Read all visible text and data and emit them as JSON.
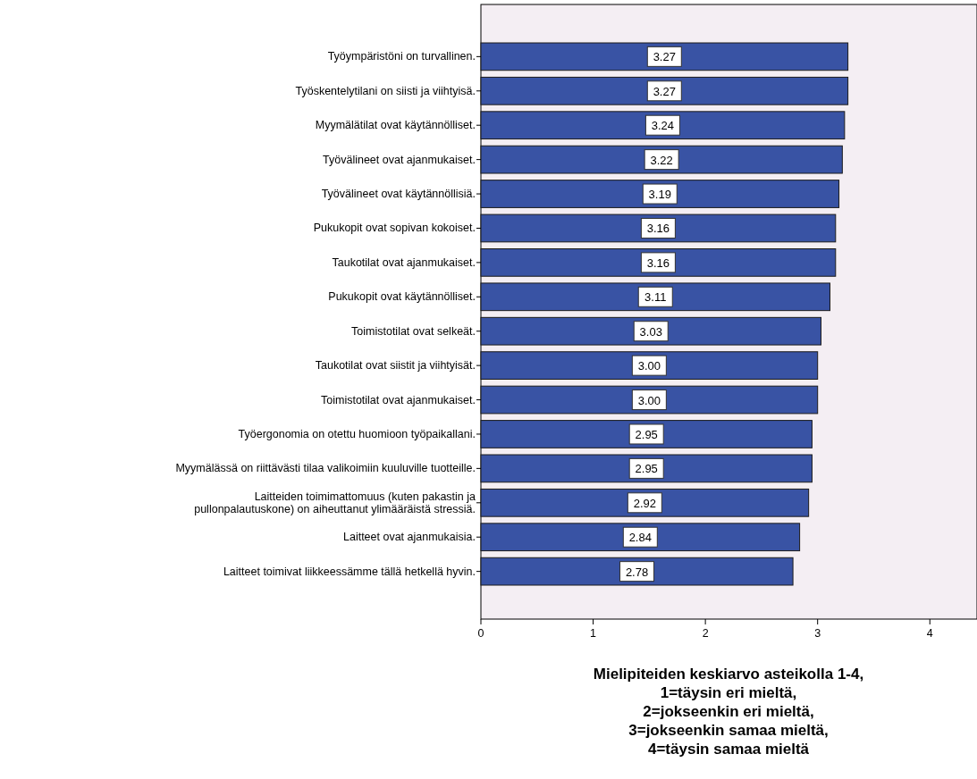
{
  "chart_data": {
    "type": "bar",
    "orientation": "horizontal",
    "categories": [
      "Työympäristöni on turvallinen.",
      "Työskentelytilani on siisti ja viihtyisä.",
      "Myymälätilat ovat käytännölliset.",
      "Työvälineet ovat ajanmukaiset.",
      "Työvälineet ovat käytännöllisiä.",
      "Pukukopit ovat sopivan kokoiset.",
      "Taukotilat ovat ajanmukaiset.",
      "Pukukopit ovat käytännölliset.",
      "Toimistotilat ovat selkeät.",
      "Taukotilat ovat siistit ja viihtyisät.",
      "Toimistotilat ovat ajanmukaiset.",
      "Työergonomia on otettu huomioon työpaikallani.",
      "Myymälässä on riittävästi tilaa valikoimiin kuuluville tuotteille.",
      "Laitteiden toimimattomuus (kuten pakastin ja\npullonpalautuskone) on aiheuttanut ylimääräistä stressiä.",
      "Laitteet ovat ajanmukaisia.",
      "Laitteet toimivat liikkeessämme tällä hetkellä hyvin."
    ],
    "values": [
      3.27,
      3.27,
      3.24,
      3.22,
      3.19,
      3.16,
      3.16,
      3.11,
      3.03,
      3.0,
      3.0,
      2.95,
      2.95,
      2.92,
      2.84,
      2.78
    ],
    "value_labels": [
      "3.27",
      "3.27",
      "3.24",
      "3.22",
      "3.19",
      "3.16",
      "3.16",
      "3.11",
      "3.03",
      "3.00",
      "3.00",
      "2.95",
      "2.95",
      "2.92",
      "2.84",
      "2.78"
    ],
    "color": "#3953a4",
    "xlim": [
      0,
      4.42
    ],
    "xticks": [
      0,
      1,
      2,
      3,
      4
    ],
    "xlabel": "Mielipiteiden keskiarvo asteikolla 1-4,\n1=täysin eri mieltä,\n2=jokseenkin eri mieltä,\n3=jokseenkin samaa mieltä,\n4=täysin samaa mieltä",
    "grid": false
  }
}
